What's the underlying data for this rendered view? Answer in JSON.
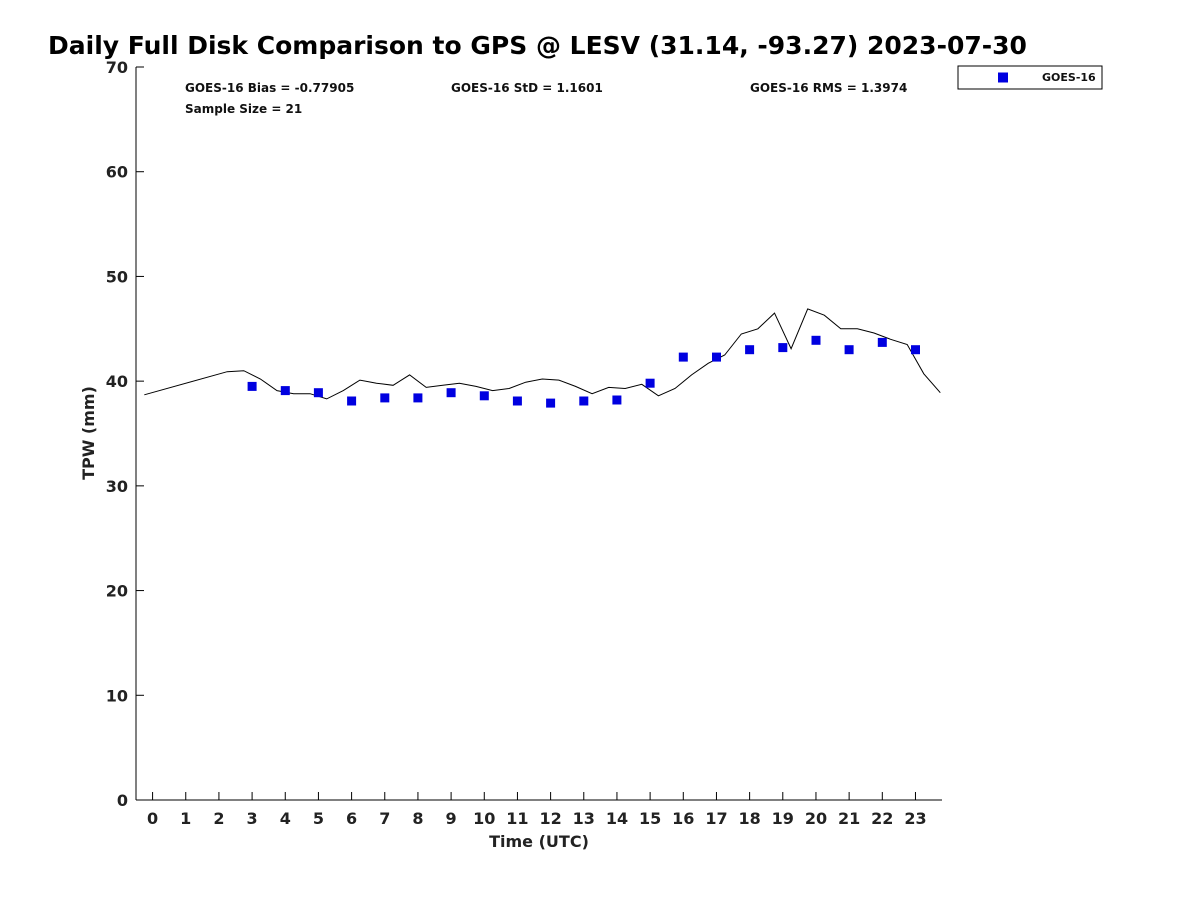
{
  "chart_data": {
    "type": "scatter",
    "title": "Daily Full Disk Comparison to GPS @ LESV (31.14, -93.27) 2023-07-30",
    "xlabel": "Time (UTC)",
    "ylabel": "TPW (mm)",
    "xlim": [
      -0.5,
      23.8
    ],
    "ylim": [
      0,
      70
    ],
    "xticks": [
      0,
      1,
      2,
      3,
      4,
      5,
      6,
      7,
      8,
      9,
      10,
      11,
      12,
      13,
      14,
      15,
      16,
      17,
      18,
      19,
      20,
      21,
      22,
      23
    ],
    "yticks": [
      0,
      10,
      20,
      30,
      40,
      50,
      60,
      70
    ],
    "grid": false,
    "legend": {
      "position": "top-right",
      "entries": [
        {
          "label": "GOES-16",
          "color": "#0000e0",
          "marker": "square"
        }
      ]
    },
    "stats": {
      "bias": "GOES-16 Bias = -0.77905",
      "std": "GOES-16 StD = 1.1601",
      "rms": "GOES-16 RMS = 1.3974",
      "sample": "Sample Size = 21"
    },
    "series": [
      {
        "name": "GPS",
        "kind": "line",
        "color": "#000000",
        "x": [
          -0.25,
          2.25,
          2.75,
          3.25,
          3.75,
          4.25,
          4.75,
          5.25,
          5.75,
          6.25,
          6.75,
          7.25,
          7.75,
          8.25,
          8.75,
          9.25,
          9.75,
          10.25,
          10.75,
          11.25,
          11.75,
          12.25,
          12.75,
          13.25,
          13.75,
          14.25,
          14.75,
          15.25,
          15.75,
          16.25,
          16.75,
          17.25,
          17.75,
          18.25,
          18.75,
          19.25,
          19.75,
          20.25,
          20.75,
          21.25,
          21.75,
          22.25,
          22.75,
          23.25,
          23.75
        ],
        "values": [
          38.7,
          40.9,
          41.0,
          40.2,
          39.1,
          38.8,
          38.8,
          38.3,
          39.1,
          40.1,
          39.8,
          39.6,
          40.6,
          39.4,
          39.6,
          39.8,
          39.5,
          39.1,
          39.3,
          39.9,
          40.2,
          40.1,
          39.5,
          38.8,
          39.4,
          39.3,
          39.7,
          38.6,
          39.3,
          40.6,
          41.7,
          42.5,
          44.5,
          45.0,
          46.5,
          43.1,
          46.9,
          46.3,
          45.0,
          45.0,
          44.6,
          44.0,
          43.5,
          40.7,
          38.9
        ]
      },
      {
        "name": "GOES-16",
        "kind": "scatter",
        "color": "#0000e0",
        "x": [
          3,
          4,
          5,
          6,
          7,
          8,
          9,
          10,
          11,
          12,
          13,
          14,
          15,
          16,
          17,
          18,
          19,
          20,
          21,
          22,
          23
        ],
        "values": [
          39.5,
          39.1,
          38.9,
          38.1,
          38.4,
          38.4,
          38.9,
          38.6,
          38.1,
          37.9,
          38.1,
          38.2,
          39.8,
          42.3,
          42.3,
          43.0,
          43.2,
          43.9,
          43.0,
          43.7,
          43.0
        ]
      }
    ]
  }
}
